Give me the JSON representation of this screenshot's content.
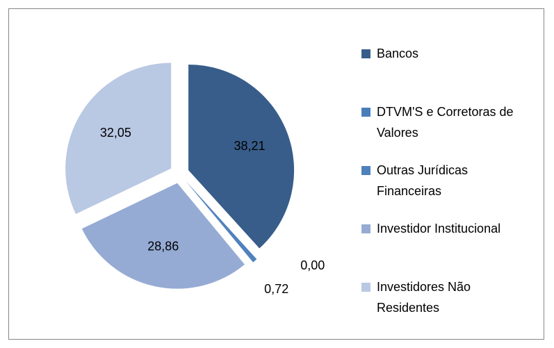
{
  "chart_data": {
    "type": "pie",
    "categories": [
      "Bancos",
      "DTVM'S  e Corretoras de Valores",
      "Outras Jurídicas Financeiras",
      "Investidor Institucional",
      "Investidores Não Residentes"
    ],
    "values": [
      38.21,
      0.0,
      0.72,
      28.86,
      32.05
    ],
    "value_labels": [
      "38,21",
      "0,00",
      "0,72",
      "28,86",
      "32,05"
    ],
    "colors": [
      "#385d8a",
      "#4a7ebb",
      "#4f81bd",
      "#95abd4",
      "#b9c8e3"
    ],
    "legend": "right"
  }
}
